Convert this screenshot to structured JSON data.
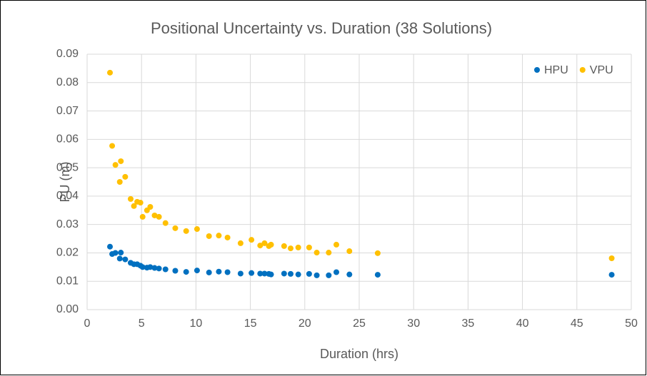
{
  "chart_data": {
    "type": "scatter",
    "title": "Positional Uncertainty vs. Duration (38 Solutions)",
    "x_label": "Duration (hrs)",
    "y_label": "PU (m)",
    "x": [
      2.1,
      2.3,
      2.6,
      3.0,
      3.1,
      3.5,
      4.0,
      4.3,
      4.6,
      4.9,
      5.1,
      5.5,
      5.8,
      6.2,
      6.6,
      7.2,
      8.1,
      9.1,
      10.1,
      11.2,
      12.1,
      12.9,
      14.1,
      15.1,
      15.9,
      16.3,
      16.7,
      16.9,
      18.1,
      18.7,
      19.4,
      20.4,
      21.1,
      22.2,
      22.9,
      24.1,
      26.7,
      48.2
    ],
    "series": [
      {
        "name": "HPU",
        "color": "#0070c0",
        "values": [
          0.0222,
          0.0196,
          0.02,
          0.018,
          0.0201,
          0.0177,
          0.0165,
          0.016,
          0.016,
          0.0155,
          0.015,
          0.0148,
          0.015,
          0.0147,
          0.0145,
          0.0142,
          0.0137,
          0.0133,
          0.0138,
          0.0131,
          0.0134,
          0.0132,
          0.0127,
          0.0129,
          0.0127,
          0.0127,
          0.0126,
          0.0124,
          0.0127,
          0.0126,
          0.0124,
          0.0126,
          0.0121,
          0.0121,
          0.0132,
          0.0124,
          0.0123,
          0.0123
        ]
      },
      {
        "name": "VPU",
        "color": "#ffc000",
        "values": [
          0.0835,
          0.0577,
          0.051,
          0.045,
          0.0523,
          0.0468,
          0.039,
          0.0365,
          0.038,
          0.0377,
          0.0327,
          0.035,
          0.0362,
          0.0332,
          0.0327,
          0.0305,
          0.0287,
          0.0277,
          0.0284,
          0.0259,
          0.0261,
          0.0254,
          0.0234,
          0.0246,
          0.0226,
          0.0234,
          0.0224,
          0.0229,
          0.0224,
          0.0216,
          0.0219,
          0.0219,
          0.0201,
          0.0201,
          0.0229,
          0.0206,
          0.0199,
          0.0181
        ]
      }
    ],
    "xlim": [
      0,
      50
    ],
    "xticks": [
      0,
      5,
      10,
      15,
      20,
      25,
      30,
      35,
      40,
      45,
      50
    ],
    "ylim": [
      0,
      0.09
    ],
    "yticks": [
      {
        "value": 0,
        "label": "0.00"
      },
      {
        "value": 0.01,
        "label": "0.01"
      },
      {
        "value": 0.02,
        "label": "0.02"
      },
      {
        "value": 0.03,
        "label": "0.03"
      },
      {
        "value": 0.04,
        "label": "0.04"
      },
      {
        "value": 0.05,
        "label": "0.05"
      },
      {
        "value": 0.06,
        "label": "0.06"
      },
      {
        "value": 0.07,
        "label": "0.07"
      },
      {
        "value": 0.08,
        "label": "0.08"
      },
      {
        "value": 0.09,
        "label": "0.09"
      }
    ],
    "grid": true,
    "legend": "top-right"
  }
}
